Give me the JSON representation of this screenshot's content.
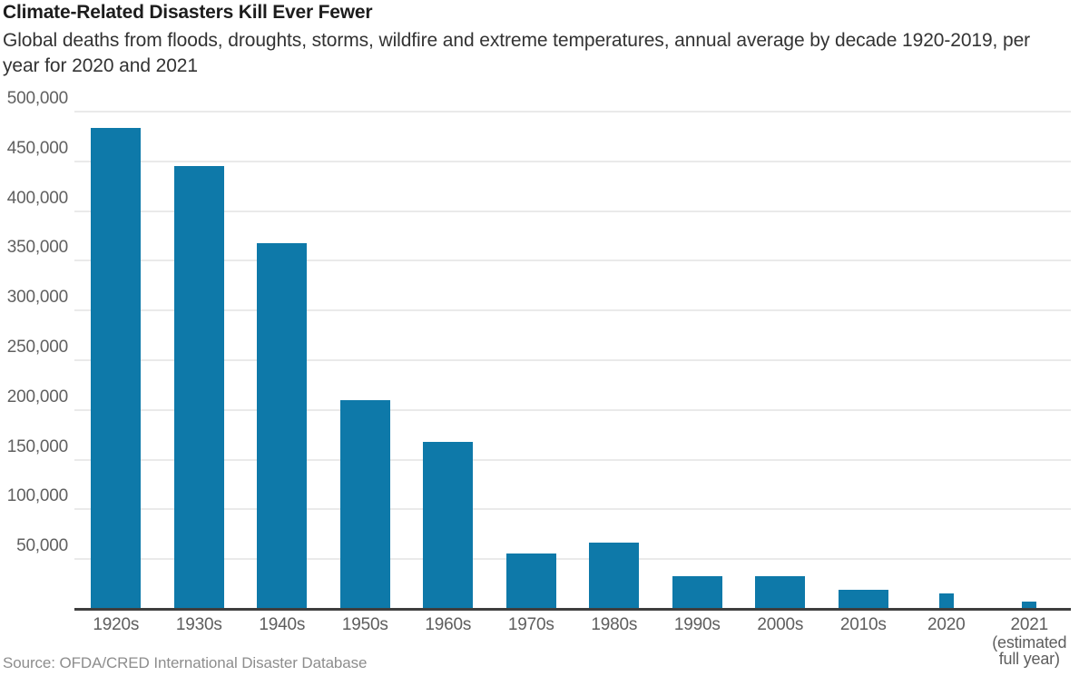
{
  "header": {
    "title": "Climate-Related Disasters Kill Ever Fewer",
    "subtitle": "Global deaths from floods, droughts, storms, wildfire and extreme temperatures, annual average by decade 1920-2019, per year for 2020 and 2021"
  },
  "source": "Source: OFDA/CRED International Disaster Database",
  "chart_data": {
    "type": "bar",
    "title": "Climate-Related Disasters Kill Ever Fewer",
    "subtitle": "Global deaths from floods, droughts, storms, wildfire and extreme temperatures, annual average by decade 1920-2019, per year for 2020 and 2021",
    "categories": [
      "1920s",
      "1930s",
      "1940s",
      "1950s",
      "1960s",
      "1970s",
      "1980s",
      "1990s",
      "2000s",
      "2010s",
      "2020",
      "2021"
    ],
    "values": [
      483000,
      444000,
      367000,
      209000,
      167000,
      55000,
      66000,
      32000,
      32000,
      18000,
      15000,
      6000
    ],
    "bar_kind": [
      "decade",
      "decade",
      "decade",
      "decade",
      "decade",
      "decade",
      "decade",
      "decade",
      "decade",
      "decade",
      "single-year",
      "single-year"
    ],
    "last_category_note_lines": [
      "(estimated",
      "full year)"
    ],
    "xlabel": "",
    "ylabel": "",
    "ylim": [
      0,
      500000
    ],
    "y_ticks": [
      500000,
      450000,
      400000,
      350000,
      300000,
      250000,
      200000,
      150000,
      100000,
      50000
    ],
    "y_tick_labels": [
      "500,000",
      "450,000",
      "400,000",
      "350,000",
      "300,000",
      "250,000",
      "200,000",
      "150,000",
      "100,000",
      "50,000"
    ],
    "grid": "horizontal",
    "legend": "none",
    "bar_color": "#0e79a9",
    "axis_line_color": "#3e3e3e",
    "gridline_color": "#eaeaea"
  }
}
